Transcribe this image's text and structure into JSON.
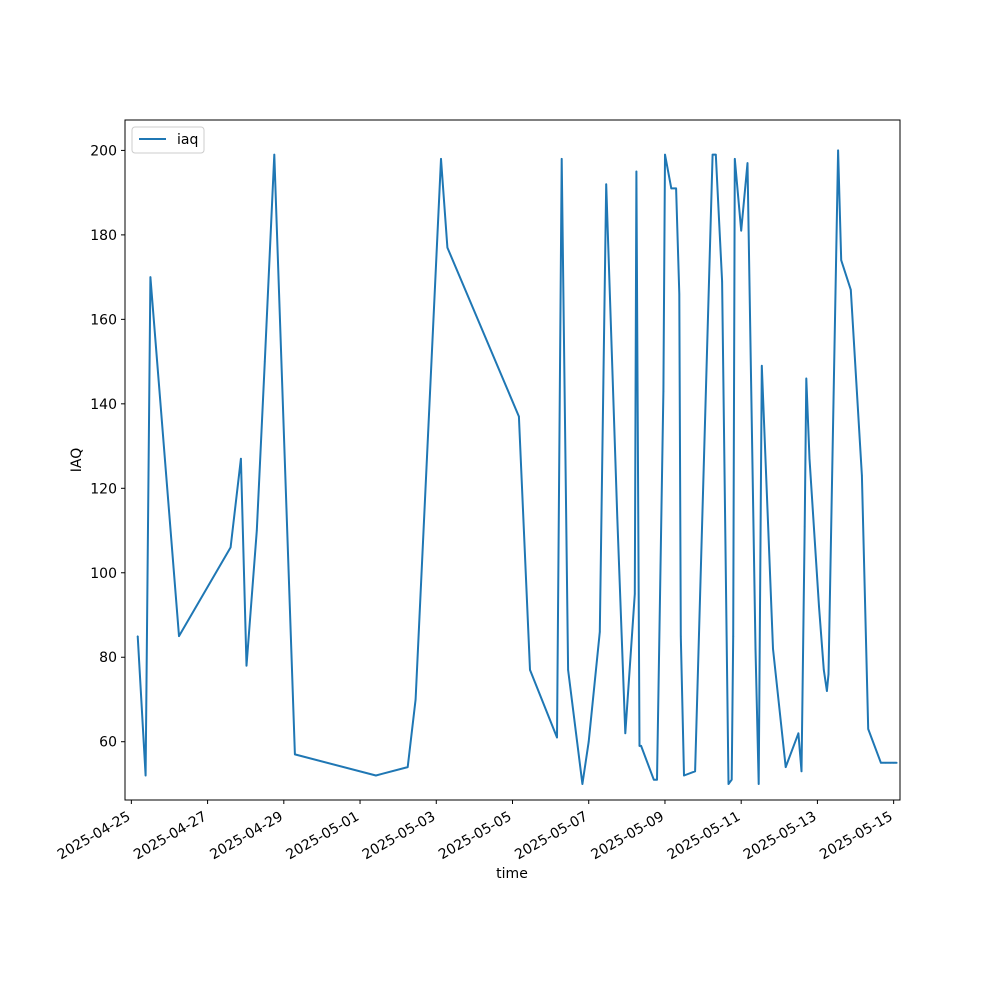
{
  "chart_data": {
    "type": "line",
    "title": "",
    "xlabel": "time",
    "ylabel": "IAQ",
    "x_tick_labels": [
      "2025-04-25",
      "2025-04-27",
      "2025-04-29",
      "2025-05-01",
      "2025-05-03",
      "2025-05-05",
      "2025-05-07",
      "2025-05-09",
      "2025-05-11",
      "2025-05-13",
      "2025-05-15"
    ],
    "y_tick_labels": [
      "60",
      "80",
      "100",
      "120",
      "140",
      "160",
      "180",
      "200"
    ],
    "xlim": [
      "2025-04-24T20:00",
      "2025-05-15T04:00"
    ],
    "ylim": [
      46.2,
      207.2
    ],
    "grid": false,
    "legend_position": "upper-left",
    "colors": {
      "series": "#1f77b4"
    },
    "series": [
      {
        "name": "iaq",
        "x": [
          "2025-04-25T04:00",
          "2025-04-25T09:00",
          "2025-04-25T12:00",
          "2025-04-26T06:00",
          "2025-04-27T14:30",
          "2025-04-27T21:00",
          "2025-04-28T00:30",
          "2025-04-28T07:00",
          "2025-04-28T12:00",
          "2025-04-28T18:00",
          "2025-04-29T07:00",
          "2025-05-01T10:00",
          "2025-05-02T06:00",
          "2025-05-02T11:00",
          "2025-05-03T03:00",
          "2025-05-03T07:00",
          "2025-05-05T04:00",
          "2025-05-05T11:00",
          "2025-05-06T04:00",
          "2025-05-06T07:00",
          "2025-05-06T11:00",
          "2025-05-06T20:00",
          "2025-05-07T00:00",
          "2025-05-07T07:00",
          "2025-05-07T11:00",
          "2025-05-07T18:00",
          "2025-05-07T23:00",
          "2025-05-08T05:00",
          "2025-05-08T06:00",
          "2025-05-08T08:00",
          "2025-05-08T09:00",
          "2025-05-08T17:00",
          "2025-05-08T19:00",
          "2025-05-08T23:00",
          "2025-05-09T00:00",
          "2025-05-09T04:00",
          "2025-05-09T07:00",
          "2025-05-09T09:00",
          "2025-05-09T10:00",
          "2025-05-09T12:00",
          "2025-05-09T19:00",
          "2025-05-10T06:00",
          "2025-05-10T08:00",
          "2025-05-10T12:00",
          "2025-05-10T16:00",
          "2025-05-10T18:00",
          "2025-05-10T19:00",
          "2025-05-10T20:00",
          "2025-05-11T00:00",
          "2025-05-11T04:00",
          "2025-05-11T09:00",
          "2025-05-11T11:00",
          "2025-05-11T13:00",
          "2025-05-11T20:00",
          "2025-05-12T04:00",
          "2025-05-12T12:00",
          "2025-05-12T14:00",
          "2025-05-12T16:00",
          "2025-05-12T17:00",
          "2025-05-12T19:00",
          "2025-05-13T01:00",
          "2025-05-13T04:00",
          "2025-05-13T06:00",
          "2025-05-13T07:00",
          "2025-05-13T13:00",
          "2025-05-13T15:00",
          "2025-05-13T21:00",
          "2025-05-14T04:00",
          "2025-05-14T08:00",
          "2025-05-14T16:00",
          "2025-05-14T19:00",
          "2025-05-14T22:00",
          "2025-05-15T00:00",
          "2025-05-15T02:00"
        ],
        "y": [
          85,
          52,
          170,
          85,
          106,
          127,
          78,
          110,
          150,
          199,
          57,
          52,
          54,
          70,
          198,
          177,
          137,
          77,
          61,
          198,
          77,
          50,
          60,
          86,
          192,
          113,
          62,
          95,
          195,
          59,
          59,
          51,
          51,
          143,
          199,
          191,
          191,
          166,
          85,
          52,
          53,
          199,
          199,
          169,
          50,
          51,
          85,
          198,
          181,
          197,
          82,
          50,
          149,
          82,
          54,
          62,
          53,
          111,
          146,
          127,
          92,
          77,
          72,
          76,
          200,
          174,
          167,
          123,
          63,
          55,
          55,
          55,
          55,
          55
        ]
      }
    ]
  }
}
